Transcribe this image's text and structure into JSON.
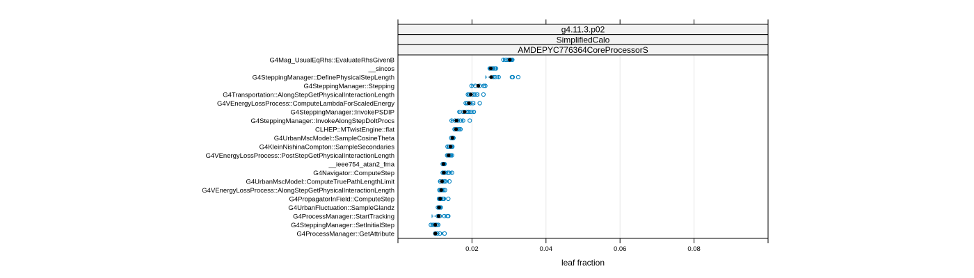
{
  "chart_data": {
    "type": "dotplot",
    "strips": [
      "g4.11.3.p02",
      "SimplifiedCalo",
      "AMDEPYC776364CoreProcessorS"
    ],
    "xlabel": "leaf fraction",
    "xlim": [
      0,
      0.1
    ],
    "xticks": [
      0.02,
      0.04,
      0.06,
      0.08
    ],
    "xtick_labels": [
      "0.02",
      "0.04",
      "0.06",
      "0.08"
    ],
    "grid": "vertical",
    "colors": {
      "points": "#0080c0",
      "median": "#000000",
      "grid": "#e6e6e6",
      "strip_bg": "#f2f2f2"
    },
    "categories": [
      {
        "label": "G4Mag_UsualEqRhs::EvaluateRhsGivenB",
        "median": 0.0302,
        "whisker": [
          0.0285,
          0.0312
        ],
        "values": [
          0.0285,
          0.0292,
          0.0298,
          0.0303,
          0.0305,
          0.0309
        ]
      },
      {
        "label": "__sincos",
        "median": 0.0251,
        "whisker": [
          0.0245,
          0.0266
        ],
        "values": [
          0.0248,
          0.0254,
          0.0258,
          0.0262,
          0.0265
        ]
      },
      {
        "label": "G4SteppingManager::DefinePhysicalStepLength",
        "median": 0.0252,
        "whisker": [
          0.0237,
          0.0272
        ],
        "values": [
          0.0258,
          0.0263,
          0.0272,
          0.0308,
          0.031,
          0.0325
        ]
      },
      {
        "label": "G4SteppingManager::Stepping",
        "median": 0.0217,
        "whisker": [
          0.0199,
          0.0237
        ],
        "values": [
          0.0199,
          0.0209,
          0.0221,
          0.0232,
          0.0236
        ]
      },
      {
        "label": "G4Transportation::AlongStepGetPhysicalInteractionLength",
        "median": 0.0197,
        "whisker": [
          0.0187,
          0.0219
        ],
        "values": [
          0.0189,
          0.0194,
          0.0203,
          0.0208,
          0.0214,
          0.0231
        ]
      },
      {
        "label": "G4VEnergyLossProcess::ComputeLambdaForScaledEnergy",
        "median": 0.0192,
        "whisker": [
          0.0182,
          0.0208
        ],
        "values": [
          0.0183,
          0.0188,
          0.0196,
          0.0203,
          0.0221
        ]
      },
      {
        "label": "G4SteppingManager::InvokePSDIP",
        "median": 0.018,
        "whisker": [
          0.0164,
          0.0205
        ],
        "values": [
          0.0166,
          0.0176,
          0.0186,
          0.0191,
          0.0197,
          0.0205
        ]
      },
      {
        "label": "G4SteppingManager::InvokeAlongStepDoItProcs",
        "median": 0.0158,
        "whisker": [
          0.0144,
          0.0176
        ],
        "values": [
          0.0145,
          0.0154,
          0.0162,
          0.0169,
          0.0176,
          0.0194
        ]
      },
      {
        "label": "CLHEP::MTwistEngine::flat",
        "median": 0.0157,
        "whisker": [
          0.0151,
          0.0169
        ],
        "values": [
          0.0153,
          0.0161,
          0.0166,
          0.0169
        ]
      },
      {
        "label": "G4UrbanMscModel::SampleCosineTheta",
        "median": 0.0147,
        "whisker": [
          0.0143,
          0.0151
        ],
        "values": [
          0.0144,
          0.0148,
          0.015
        ]
      },
      {
        "label": "G4KleinNishinaCompton::SampleSecondaries",
        "median": 0.0142,
        "whisker": [
          0.0133,
          0.0148
        ],
        "values": [
          0.0134,
          0.0139,
          0.0145,
          0.0147
        ]
      },
      {
        "label": "G4VEnergyLossProcess::PostStepGetPhysicalInteractionLength",
        "median": 0.0137,
        "whisker": [
          0.0131,
          0.0146
        ],
        "values": [
          0.0133,
          0.0139,
          0.0143,
          0.0146
        ]
      },
      {
        "label": "__ieee754_atan2_fma",
        "median": 0.0123,
        "whisker": [
          0.0119,
          0.0128
        ],
        "values": [
          0.0121,
          0.0124,
          0.0126
        ]
      },
      {
        "label": "G4Navigator::ComputeStep",
        "median": 0.0124,
        "whisker": [
          0.0119,
          0.0146
        ],
        "values": [
          0.0121,
          0.0127,
          0.0134,
          0.0138,
          0.0146
        ]
      },
      {
        "label": "G4UrbanMscModel::ComputeTruePathLengthLimit",
        "median": 0.0119,
        "whisker": [
          0.0111,
          0.0136
        ],
        "values": [
          0.0114,
          0.0121,
          0.0125,
          0.0128,
          0.0139
        ]
      },
      {
        "label": "G4VEnergyLossProcess::AlongStepGetPhysicalInteractionLength",
        "median": 0.0117,
        "whisker": [
          0.0111,
          0.0127
        ],
        "values": [
          0.0112,
          0.0115,
          0.0119,
          0.0123,
          0.0127
        ]
      },
      {
        "label": "G4PropagatorInField::ComputeStep",
        "median": 0.0114,
        "whisker": [
          0.0109,
          0.0127
        ],
        "values": [
          0.0111,
          0.0116,
          0.0121,
          0.0124,
          0.0136
        ]
      },
      {
        "label": "G4UrbanFluctuation::SampleGlandz",
        "median": 0.0111,
        "whisker": [
          0.0107,
          0.0116
        ],
        "values": [
          0.0108,
          0.0111,
          0.0113,
          0.0116
        ]
      },
      {
        "label": "G4ProcessManager::StartTracking",
        "median": 0.011,
        "whisker": [
          0.0092,
          0.0129
        ],
        "values": [
          0.0108,
          0.0113,
          0.0125,
          0.0134,
          0.0136
        ]
      },
      {
        "label": "G4SteppingManager::SetInitialStep",
        "median": 0.0101,
        "whisker": [
          0.0089,
          0.0111
        ],
        "values": [
          0.0089,
          0.0095,
          0.01,
          0.0104,
          0.0109
        ]
      },
      {
        "label": "G4ProcessManager::GetAttribute",
        "median": 0.0101,
        "whisker": [
          0.0097,
          0.0119
        ],
        "values": [
          0.0101,
          0.0106,
          0.0113,
          0.0126
        ]
      }
    ]
  }
}
